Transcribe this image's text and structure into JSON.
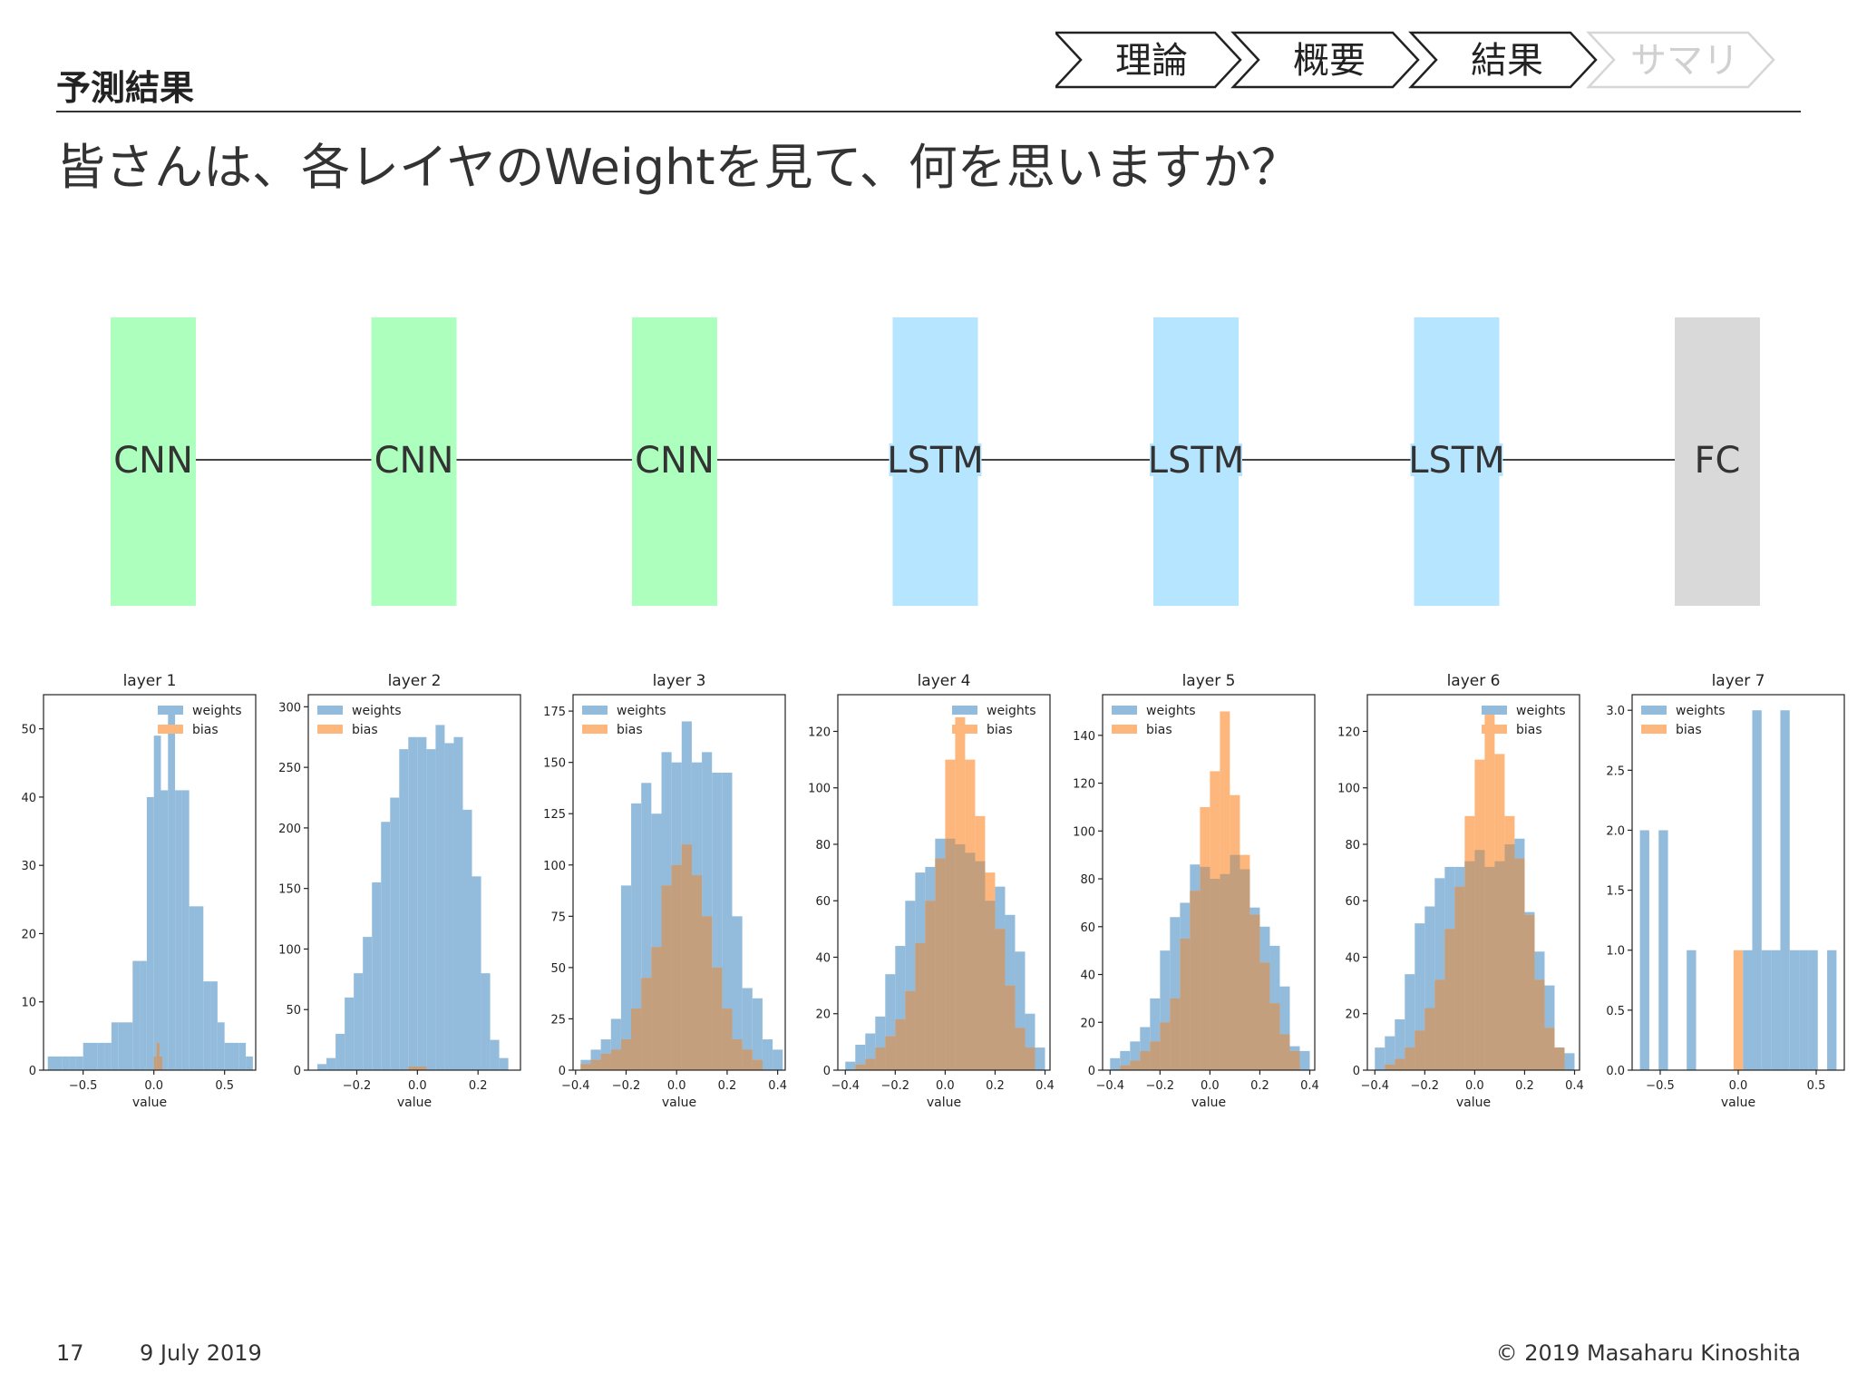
{
  "header": {
    "section_title": "予測結果",
    "steps": [
      {
        "label": "理論",
        "state": "done"
      },
      {
        "label": "概要",
        "state": "done"
      },
      {
        "label": "結果",
        "state": "current"
      },
      {
        "label": "サマリ",
        "state": "upcoming"
      }
    ]
  },
  "headline": "皆さんは、各レイヤのWeightを見て、何を思いますか？",
  "architecture": {
    "layers": [
      {
        "label": "CNN",
        "kind": "cnn"
      },
      {
        "label": "CNN",
        "kind": "cnn"
      },
      {
        "label": "CNN",
        "kind": "cnn"
      },
      {
        "label": "LSTM",
        "kind": "lstm"
      },
      {
        "label": "LSTM",
        "kind": "lstm"
      },
      {
        "label": "LSTM",
        "kind": "lstm"
      },
      {
        "label": "FC",
        "kind": "fc"
      }
    ],
    "colors": {
      "cnn": "#adffbe",
      "lstm": "#b6e5ff",
      "fc": "#d9d9d9"
    }
  },
  "colors": {
    "weights": "#93bcdc",
    "bias": "#fdb77c",
    "overlap": "#c39f7e"
  },
  "chart_data": [
    {
      "type": "bar",
      "title": "layer 1",
      "xlabel": "value",
      "legend_loc": "top-right",
      "xlim": [
        -0.78,
        0.72
      ],
      "ylim": [
        0,
        55
      ],
      "xticks": [
        -0.5,
        0.0,
        0.5
      ],
      "xtick_labels": [
        "−0.5",
        "0.0",
        "0.5"
      ],
      "yticks": [
        0,
        10,
        20,
        30,
        40,
        50
      ],
      "ytick_labels": [
        "0",
        "10",
        "20",
        "30",
        "40",
        "50"
      ],
      "series": [
        {
          "name": "weights",
          "edges": [
            -0.75,
            -0.7,
            -0.65,
            -0.6,
            -0.55,
            -0.5,
            -0.45,
            -0.4,
            -0.35,
            -0.3,
            -0.25,
            -0.2,
            -0.15,
            -0.1,
            -0.05,
            0.0,
            0.05,
            0.1,
            0.15,
            0.2,
            0.25,
            0.3,
            0.35,
            0.4,
            0.45,
            0.5,
            0.55,
            0.6,
            0.65,
            0.7
          ],
          "counts": [
            2,
            2,
            2,
            2,
            2,
            4,
            4,
            4,
            4,
            7,
            7,
            7,
            16,
            16,
            40,
            49,
            41,
            53,
            41,
            41,
            24,
            24,
            13,
            13,
            7,
            4,
            4,
            4,
            2
          ]
        },
        {
          "name": "bias",
          "edges": [
            0.0,
            0.02,
            0.04,
            0.06
          ],
          "counts": [
            2,
            4,
            2
          ]
        }
      ]
    },
    {
      "type": "bar",
      "title": "layer 2",
      "xlabel": "value",
      "legend_loc": "top-left",
      "xlim": [
        -0.36,
        0.34
      ],
      "ylim": [
        0,
        310
      ],
      "xticks": [
        -0.2,
        0.0,
        0.2
      ],
      "xtick_labels": [
        "−0.2",
        "0.0",
        "0.2"
      ],
      "yticks": [
        0,
        50,
        100,
        150,
        200,
        250,
        300
      ],
      "ytick_labels": [
        "0",
        "50",
        "100",
        "150",
        "200",
        "250",
        "300"
      ],
      "series": [
        {
          "name": "weights",
          "edges": [
            -0.33,
            -0.3,
            -0.27,
            -0.24,
            -0.21,
            -0.18,
            -0.15,
            -0.12,
            -0.09,
            -0.06,
            -0.03,
            0.0,
            0.03,
            0.06,
            0.09,
            0.12,
            0.15,
            0.18,
            0.21,
            0.24,
            0.27,
            0.3
          ],
          "counts": [
            5,
            10,
            30,
            60,
            80,
            110,
            155,
            205,
            225,
            265,
            275,
            275,
            265,
            285,
            270,
            275,
            215,
            160,
            80,
            25,
            10
          ]
        },
        {
          "name": "bias",
          "edges": [
            -0.03,
            0.0,
            0.03
          ],
          "counts": [
            3,
            3
          ]
        }
      ]
    },
    {
      "type": "bar",
      "title": "layer 3",
      "xlabel": "value",
      "legend_loc": "top-left",
      "xlim": [
        -0.41,
        0.43
      ],
      "ylim": [
        0,
        183
      ],
      "xticks": [
        -0.4,
        -0.2,
        0.0,
        0.2,
        0.4
      ],
      "xtick_labels": [
        "−0.4",
        "−0.2",
        "0.0",
        "0.2",
        "0.4"
      ],
      "yticks": [
        0,
        25,
        50,
        75,
        100,
        125,
        150,
        175
      ],
      "ytick_labels": [
        "0",
        "25",
        "50",
        "75",
        "100",
        "125",
        "150",
        "175"
      ],
      "series": [
        {
          "name": "weights",
          "edges": [
            -0.38,
            -0.34,
            -0.3,
            -0.26,
            -0.22,
            -0.18,
            -0.14,
            -0.1,
            -0.06,
            -0.02,
            0.02,
            0.06,
            0.1,
            0.14,
            0.18,
            0.22,
            0.26,
            0.3,
            0.34,
            0.38,
            0.42
          ],
          "counts": [
            5,
            10,
            15,
            25,
            90,
            130,
            140,
            125,
            155,
            150,
            170,
            150,
            155,
            145,
            145,
            75,
            40,
            35,
            15,
            10
          ]
        },
        {
          "name": "bias",
          "edges": [
            -0.38,
            -0.34,
            -0.3,
            -0.26,
            -0.22,
            -0.18,
            -0.14,
            -0.1,
            -0.06,
            -0.02,
            0.02,
            0.06,
            0.1,
            0.14,
            0.18,
            0.22,
            0.26,
            0.3,
            0.34
          ],
          "counts": [
            3,
            5,
            8,
            10,
            15,
            30,
            45,
            60,
            90,
            100,
            110,
            95,
            75,
            50,
            30,
            15,
            10,
            5
          ]
        }
      ]
    },
    {
      "type": "bar",
      "title": "layer 4",
      "xlabel": "value",
      "legend_loc": "top-right",
      "xlim": [
        -0.43,
        0.42
      ],
      "ylim": [
        0,
        133
      ],
      "xticks": [
        -0.4,
        -0.2,
        0.0,
        0.2,
        0.4
      ],
      "xtick_labels": [
        "−0.4",
        "−0.2",
        "0.0",
        "0.2",
        "0.4"
      ],
      "yticks": [
        0,
        20,
        40,
        60,
        80,
        100,
        120
      ],
      "ytick_labels": [
        "0",
        "20",
        "40",
        "60",
        "80",
        "100",
        "120"
      ],
      "series": [
        {
          "name": "weights",
          "edges": [
            -0.4,
            -0.36,
            -0.32,
            -0.28,
            -0.24,
            -0.2,
            -0.16,
            -0.12,
            -0.08,
            -0.04,
            0.0,
            0.04,
            0.08,
            0.12,
            0.16,
            0.2,
            0.24,
            0.28,
            0.32,
            0.36,
            0.4
          ],
          "counts": [
            3,
            9,
            13,
            19,
            34,
            44,
            60,
            70,
            72,
            82,
            82,
            80,
            77,
            74,
            60,
            65,
            55,
            42,
            20,
            8
          ]
        },
        {
          "name": "bias",
          "edges": [
            -0.36,
            -0.32,
            -0.28,
            -0.24,
            -0.2,
            -0.16,
            -0.12,
            -0.08,
            -0.04,
            0.0,
            0.04,
            0.08,
            0.12,
            0.16,
            0.2,
            0.24,
            0.28,
            0.32,
            0.36
          ],
          "counts": [
            2,
            4,
            8,
            12,
            18,
            28,
            45,
            60,
            75,
            110,
            125,
            110,
            90,
            70,
            50,
            30,
            15,
            8
          ]
        }
      ]
    },
    {
      "type": "bar",
      "title": "layer 5",
      "xlabel": "value",
      "legend_loc": "top-left",
      "xlim": [
        -0.43,
        0.42
      ],
      "ylim": [
        0,
        157
      ],
      "xticks": [
        -0.4,
        -0.2,
        0.0,
        0.2,
        0.4
      ],
      "xtick_labels": [
        "−0.4",
        "−0.2",
        "0.0",
        "0.2",
        "0.4"
      ],
      "yticks": [
        0,
        20,
        40,
        60,
        80,
        100,
        120,
        140
      ],
      "ytick_labels": [
        "0",
        "20",
        "40",
        "60",
        "80",
        "100",
        "120",
        "140"
      ],
      "series": [
        {
          "name": "weights",
          "edges": [
            -0.4,
            -0.36,
            -0.32,
            -0.28,
            -0.24,
            -0.2,
            -0.16,
            -0.12,
            -0.08,
            -0.04,
            0.0,
            0.04,
            0.08,
            0.12,
            0.16,
            0.2,
            0.24,
            0.28,
            0.32,
            0.36,
            0.4
          ],
          "counts": [
            5,
            8,
            12,
            18,
            30,
            50,
            64,
            70,
            86,
            85,
            80,
            82,
            90,
            84,
            68,
            60,
            52,
            35,
            10,
            8
          ]
        },
        {
          "name": "bias",
          "edges": [
            -0.36,
            -0.32,
            -0.28,
            -0.24,
            -0.2,
            -0.16,
            -0.12,
            -0.08,
            -0.04,
            0.0,
            0.04,
            0.08,
            0.12,
            0.16,
            0.2,
            0.24,
            0.28,
            0.32,
            0.36
          ],
          "counts": [
            2,
            4,
            8,
            12,
            20,
            30,
            55,
            75,
            110,
            125,
            150,
            115,
            90,
            65,
            45,
            28,
            15,
            8
          ]
        }
      ]
    },
    {
      "type": "bar",
      "title": "layer 6",
      "xlabel": "value",
      "legend_loc": "top-right",
      "xlim": [
        -0.43,
        0.42
      ],
      "ylim": [
        0,
        133
      ],
      "xticks": [
        -0.4,
        -0.2,
        0.0,
        0.2,
        0.4
      ],
      "xtick_labels": [
        "−0.4",
        "−0.2",
        "0.0",
        "0.2",
        "0.4"
      ],
      "yticks": [
        0,
        20,
        40,
        60,
        80,
        100,
        120
      ],
      "ytick_labels": [
        "0",
        "20",
        "40",
        "60",
        "80",
        "100",
        "120"
      ],
      "series": [
        {
          "name": "weights",
          "edges": [
            -0.4,
            -0.36,
            -0.32,
            -0.28,
            -0.24,
            -0.2,
            -0.16,
            -0.12,
            -0.08,
            -0.04,
            0.0,
            0.04,
            0.08,
            0.12,
            0.16,
            0.2,
            0.24,
            0.28,
            0.32,
            0.36,
            0.4
          ],
          "counts": [
            8,
            12,
            18,
            34,
            52,
            58,
            68,
            72,
            72,
            74,
            78,
            72,
            74,
            80,
            82,
            56,
            42,
            30,
            8,
            6
          ]
        },
        {
          "name": "bias",
          "edges": [
            -0.36,
            -0.32,
            -0.28,
            -0.24,
            -0.2,
            -0.16,
            -0.12,
            -0.08,
            -0.04,
            0.0,
            0.04,
            0.08,
            0.12,
            0.16,
            0.2,
            0.24,
            0.28,
            0.32,
            0.36
          ],
          "counts": [
            2,
            4,
            8,
            14,
            22,
            32,
            50,
            65,
            90,
            110,
            128,
            112,
            90,
            75,
            55,
            32,
            15,
            8
          ]
        }
      ]
    },
    {
      "type": "bar",
      "title": "layer 7",
      "xlabel": "value",
      "legend_loc": "top-left",
      "xlim": [
        -0.68,
        0.68
      ],
      "ylim": [
        0,
        3.13
      ],
      "xticks": [
        -0.5,
        0.0,
        0.5
      ],
      "xtick_labels": [
        "−0.5",
        "0.0",
        "0.5"
      ],
      "yticks": [
        0,
        0.5,
        1.0,
        1.5,
        2.0,
        2.5,
        3.0
      ],
      "ytick_labels": [
        "0.0",
        "0.5",
        "1.0",
        "1.5",
        "2.0",
        "2.5",
        "3.0"
      ],
      "series": [
        {
          "name": "weights",
          "edges": [
            -0.63,
            -0.57,
            -0.51,
            -0.45,
            -0.39,
            -0.33,
            -0.27,
            -0.21,
            -0.15,
            -0.09,
            -0.03,
            0.03,
            0.09,
            0.15,
            0.21,
            0.27,
            0.33,
            0.39,
            0.45,
            0.51,
            0.57,
            0.63
          ],
          "counts": [
            2,
            0,
            2,
            0,
            0,
            1,
            0,
            0,
            0,
            0,
            0,
            1,
            3,
            1,
            1,
            3,
            1,
            1,
            1,
            0,
            1
          ]
        },
        {
          "name": "bias",
          "edges": [
            -0.03,
            0.03
          ],
          "counts": [
            1
          ]
        }
      ]
    }
  ],
  "footer": {
    "page_number": "17",
    "date": "9 July 2019",
    "copyright": "© 2019 Masaharu Kinoshita"
  }
}
